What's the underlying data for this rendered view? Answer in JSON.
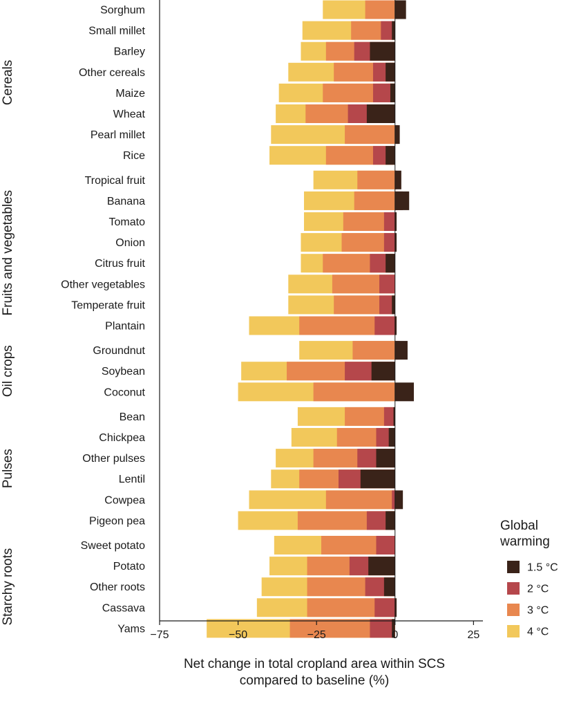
{
  "chart_data": {
    "type": "bar",
    "orientation": "horizontal",
    "xlabel_lines": [
      "Net change in total cropland area within SCS",
      "compared to baseline (%)"
    ],
    "xlim": [
      -75,
      28
    ],
    "xticks": [
      -75,
      -50,
      -25,
      0,
      25
    ],
    "xtick_labels": [
      "−75",
      "−50",
      "−25",
      "0",
      "25"
    ],
    "legend": {
      "title_lines": [
        "Global",
        "warming"
      ],
      "placement": "bottom-right",
      "entries": [
        "1.5 °C",
        "2 °C",
        "3 °C",
        "4 °C"
      ]
    },
    "series": [
      {
        "name": "4 °C",
        "color": "#f2c85b"
      },
      {
        "name": "3 °C",
        "color": "#e8874f"
      },
      {
        "name": "2 °C",
        "color": "#b5474b"
      },
      {
        "name": "1.5 °C",
        "color": "#3a2319"
      }
    ],
    "groups": [
      {
        "name": "Cereals",
        "crops": [
          {
            "name": "Sorghum",
            "values": [
              -23,
              -9.5,
              2.5,
              3.5
            ]
          },
          {
            "name": "Small millet",
            "values": [
              -29.5,
              -14,
              -4.5,
              -1
            ]
          },
          {
            "name": "Barley",
            "values": [
              -30,
              -22,
              -13,
              -8
            ]
          },
          {
            "name": "Other cereals",
            "values": [
              -34,
              -19.5,
              -7,
              -3
            ]
          },
          {
            "name": "Maize",
            "values": [
              -37,
              -23,
              -7,
              -1.5
            ]
          },
          {
            "name": "Wheat",
            "values": [
              -38,
              -28.5,
              -15,
              -9
            ]
          },
          {
            "name": "Pearl millet",
            "values": [
              -39.5,
              -16,
              1,
              1.5
            ]
          },
          {
            "name": "Rice",
            "values": [
              -40,
              -22,
              -7,
              -3
            ]
          }
        ]
      },
      {
        "name": "Fruits and vegetables",
        "crops": [
          {
            "name": "Tropical fruit",
            "values": [
              -26,
              -12,
              0.5,
              2
            ]
          },
          {
            "name": "Banana",
            "values": [
              -29,
              -13,
              2.5,
              4.5
            ]
          },
          {
            "name": "Tomato",
            "values": [
              -29,
              -16.5,
              -3.5,
              0.5
            ]
          },
          {
            "name": "Onion",
            "values": [
              -30,
              -17,
              -3.5,
              0.5
            ]
          },
          {
            "name": "Citrus fruit",
            "values": [
              -30,
              -23,
              -8,
              -3
            ]
          },
          {
            "name": "Other vegetables",
            "values": [
              -34,
              -20,
              -5,
              0
            ]
          },
          {
            "name": "Temperate fruit",
            "values": [
              -34,
              -19.5,
              -5,
              -1
            ]
          },
          {
            "name": "Plantain",
            "values": [
              -46.5,
              -30.5,
              -6.5,
              0.5
            ]
          }
        ]
      },
      {
        "name": "Oil crops",
        "crops": [
          {
            "name": "Groundnut",
            "values": [
              -30.5,
              -13.5,
              1.5,
              4
            ]
          },
          {
            "name": "Soybean",
            "values": [
              -49,
              -34.5,
              -16,
              -7.5
            ]
          },
          {
            "name": "Coconut",
            "values": [
              -50,
              -26,
              0,
              6
            ]
          }
        ]
      },
      {
        "name": "Pulses",
        "crops": [
          {
            "name": "Bean",
            "values": [
              -31,
              -16,
              -3.5,
              -0.5
            ]
          },
          {
            "name": "Chickpea",
            "values": [
              -33,
              -18.5,
              -6,
              -2
            ]
          },
          {
            "name": "Other pulses",
            "values": [
              -38,
              -26,
              -12,
              -6
            ]
          },
          {
            "name": "Lentil",
            "values": [
              -39.5,
              -30.5,
              -18,
              -11
            ]
          },
          {
            "name": "Cowpea",
            "values": [
              -46.5,
              -22,
              -1,
              2.5
            ]
          },
          {
            "name": "Pigeon pea",
            "values": [
              -50,
              -31,
              -9,
              -3
            ]
          }
        ]
      },
      {
        "name": "Starchy roots",
        "crops": [
          {
            "name": "Sweet potato",
            "values": [
              -38.5,
              -23.5,
              -6,
              0
            ]
          },
          {
            "name": "Potato",
            "values": [
              -40,
              -28,
              -14.5,
              -8.5
            ]
          },
          {
            "name": "Other roots",
            "values": [
              -42.5,
              -28,
              -9.5,
              -3.5
            ]
          },
          {
            "name": "Cassava",
            "values": [
              -44,
              -28,
              -6.5,
              0.5
            ]
          },
          {
            "name": "Yams",
            "values": [
              -60,
              -33.5,
              -8,
              -1
            ]
          }
        ]
      }
    ]
  }
}
